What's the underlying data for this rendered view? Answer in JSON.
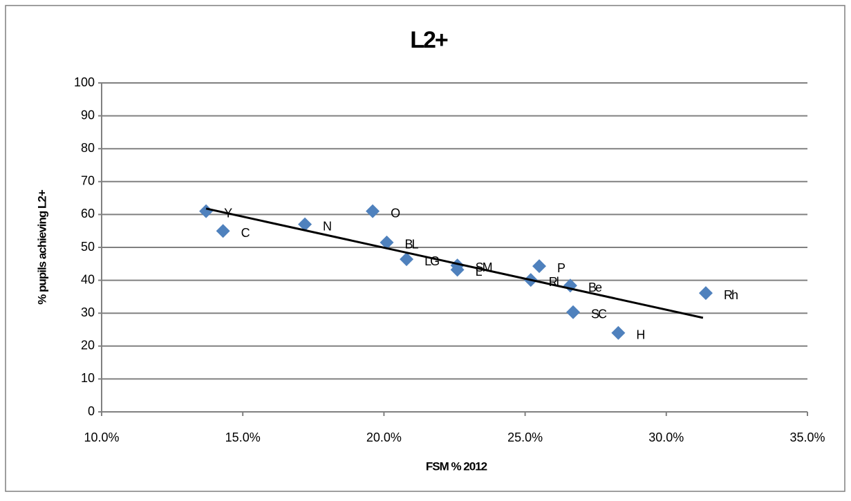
{
  "chart_data": {
    "type": "scatter",
    "title": "L2+",
    "x_label": "FSM % 2012",
    "y_label": "% pupils achieving L2+",
    "x": [
      13.7,
      14.3,
      17.2,
      19.6,
      20.1,
      20.8,
      22.6,
      22.6,
      25.5,
      25.2,
      26.6,
      26.7,
      28.3,
      31.4
    ],
    "values": [
      61,
      55,
      57,
      61,
      51.5,
      46.4,
      44.5,
      43.2,
      44.3,
      40.1,
      38.4,
      30.3,
      24,
      36.1
    ],
    "labels": [
      "Y",
      "C",
      "N",
      "O",
      "BL",
      "LG",
      "SM",
      "L",
      "P",
      "Rl",
      "Be",
      "SC",
      "H",
      "Rh"
    ],
    "color": "#4f81bd",
    "trendline": {
      "x": [
        13.7,
        31.3
      ],
      "values": [
        61.8,
        28.6
      ],
      "color": "#000000"
    },
    "xlim": [
      10,
      35
    ],
    "xticks": [
      {
        "value": 10,
        "label": "10.0%"
      },
      {
        "value": 15,
        "label": "15.0%"
      },
      {
        "value": 20,
        "label": "20.0%"
      },
      {
        "value": 25,
        "label": "25.0%"
      },
      {
        "value": 30,
        "label": "30.0%"
      },
      {
        "value": 35,
        "label": "35.0%"
      }
    ],
    "ylim": [
      0,
      100
    ],
    "yticks": [
      0,
      10,
      20,
      30,
      40,
      50,
      60,
      70,
      80,
      90,
      100
    ],
    "grid": true
  }
}
